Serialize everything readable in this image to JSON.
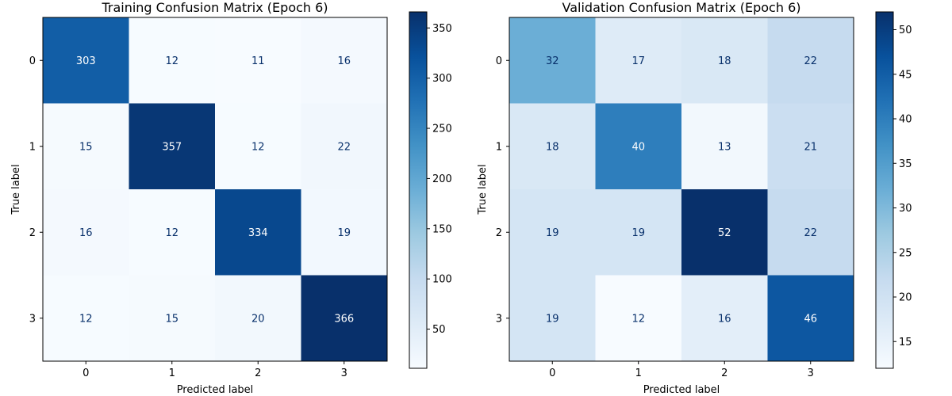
{
  "chart_data": [
    {
      "type": "heatmap",
      "title": "Training Confusion Matrix (Epoch 6)",
      "xlabel": "Predicted label",
      "ylabel": "True label",
      "x_categories": [
        "0",
        "1",
        "2",
        "3"
      ],
      "y_categories": [
        "0",
        "1",
        "2",
        "3"
      ],
      "values": [
        [
          303,
          12,
          11,
          16
        ],
        [
          15,
          357,
          12,
          22
        ],
        [
          16,
          12,
          334,
          19
        ],
        [
          12,
          15,
          20,
          366
        ]
      ],
      "colormap": "Blues",
      "colorbar_range": [
        11,
        366
      ],
      "colorbar_ticks": [
        50,
        100,
        150,
        200,
        250,
        300,
        350
      ]
    },
    {
      "type": "heatmap",
      "title": "Validation Confusion Matrix (Epoch 6)",
      "xlabel": "Predicted label",
      "ylabel": "True label",
      "x_categories": [
        "0",
        "1",
        "2",
        "3"
      ],
      "y_categories": [
        "0",
        "1",
        "2",
        "3"
      ],
      "values": [
        [
          32,
          17,
          18,
          22
        ],
        [
          18,
          40,
          13,
          21
        ],
        [
          19,
          19,
          52,
          22
        ],
        [
          19,
          12,
          16,
          46
        ]
      ],
      "colormap": "Blues",
      "colorbar_range": [
        12,
        52
      ],
      "colorbar_ticks": [
        15,
        20,
        25,
        30,
        35,
        40,
        45,
        50
      ]
    }
  ]
}
